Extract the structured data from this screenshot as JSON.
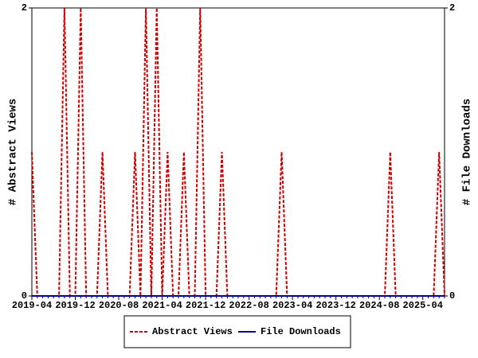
{
  "chart_data": {
    "type": "line",
    "ylabel": "# Abstract Views",
    "y2label": "# File Downloads",
    "categories": [
      "2019-04",
      null,
      null,
      null,
      null,
      null,
      null,
      null,
      "2019-12",
      null,
      null,
      null,
      null,
      null,
      null,
      null,
      "2020-08",
      null,
      null,
      null,
      null,
      null,
      null,
      null,
      "2021-04",
      null,
      null,
      null,
      null,
      null,
      null,
      null,
      "2021-12",
      null,
      null,
      null,
      null,
      null,
      null,
      null,
      "2022-08",
      null,
      null,
      null,
      null,
      null,
      null,
      null,
      "2023-04",
      null,
      null,
      null,
      null,
      null,
      null,
      null,
      "2023-12",
      null,
      null,
      null,
      null,
      null,
      null,
      null,
      "2024-08",
      null,
      null,
      null,
      null,
      null,
      null,
      null,
      "2025-04",
      null,
      null,
      null,
      null
    ],
    "series": [
      {
        "name": "Abstract Views",
        "color": "#cc0000",
        "dashed": true,
        "values": [
          1,
          0,
          0,
          0,
          0,
          0,
          2,
          0,
          0,
          2,
          0,
          0,
          0,
          1,
          0,
          0,
          0,
          0,
          0,
          1,
          0,
          2,
          0,
          2,
          0,
          1,
          0,
          0,
          1,
          0,
          0,
          2,
          0,
          0,
          0,
          1,
          0,
          0,
          0,
          0,
          0,
          0,
          0,
          0,
          0,
          0,
          1,
          0,
          0,
          0,
          0,
          0,
          0,
          0,
          0,
          0,
          0,
          0,
          0,
          0,
          0,
          0,
          0,
          0,
          0,
          0,
          1,
          0,
          0,
          0,
          0,
          0,
          0,
          0,
          0,
          1,
          0
        ]
      },
      {
        "name": "File Downloads",
        "color": "#000099",
        "dashed": false,
        "axis": "y2",
        "values": [
          0,
          0,
          0,
          0,
          0,
          0,
          0,
          0,
          0,
          0,
          0,
          0,
          0,
          0,
          0,
          0,
          0,
          0,
          0,
          0,
          0,
          0,
          0,
          0,
          0,
          0,
          0,
          0,
          0,
          0,
          0,
          0,
          0,
          0,
          0,
          0,
          0,
          0,
          0,
          0,
          0,
          0,
          0,
          0,
          0,
          0,
          0,
          0,
          0,
          0,
          0,
          0,
          0,
          0,
          0,
          0,
          0,
          0,
          0,
          0,
          0,
          0,
          0,
          0,
          0,
          0,
          0,
          0,
          0,
          0,
          0,
          0,
          0,
          0,
          0,
          0,
          0
        ]
      }
    ],
    "ylim": [
      0,
      2
    ],
    "yticks": [
      0,
      2
    ],
    "y2lim": [
      0,
      2
    ],
    "y2ticks": [
      0,
      2
    ]
  }
}
